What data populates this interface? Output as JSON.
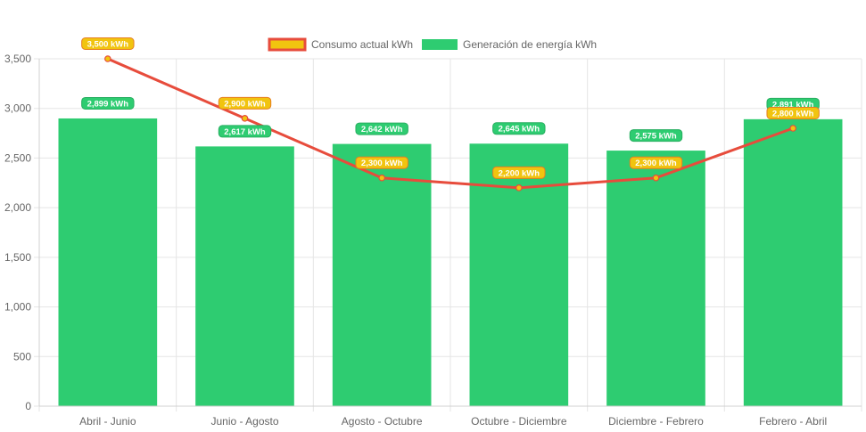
{
  "chart_data": {
    "type": "bar",
    "categories": [
      "Abril - Junio",
      "Junio - Agosto",
      "Agosto - Octubre",
      "Octubre - Diciembre",
      "Diciembre - Febrero",
      "Febrero - Abril"
    ],
    "series": [
      {
        "name": "Consumo actual kWh",
        "type": "line",
        "values": [
          3500,
          2900,
          2300,
          2200,
          2300,
          2800
        ],
        "labels": [
          "3,500 kWh",
          "2,900 kWh",
          "2,300 kWh",
          "2,200 kWh",
          "2,300 kWh",
          "2,800 kWh"
        ],
        "color": "#E74C3C",
        "label_color": "#F1C40F"
      },
      {
        "name": "Generación de energía kWh",
        "type": "bar",
        "values": [
          2899,
          2617,
          2642,
          2645,
          2575,
          2891
        ],
        "labels": [
          "2,899 kWh",
          "2,617 kWh",
          "2,642 kWh",
          "2,645 kWh",
          "2,575 kWh",
          "2,891 kWh"
        ],
        "color": "#2ECC71"
      }
    ],
    "ylim": [
      0,
      3500
    ],
    "y_ticks": [
      0,
      500,
      1000,
      1500,
      2000,
      2500,
      3000,
      3500
    ],
    "y_tick_labels": [
      "0",
      "500",
      "1,000",
      "1,500",
      "2,000",
      "2,500",
      "3,000",
      "3,500"
    ],
    "title": "",
    "xlabel": "",
    "ylabel": "",
    "grid": true,
    "legend_position": "top"
  }
}
